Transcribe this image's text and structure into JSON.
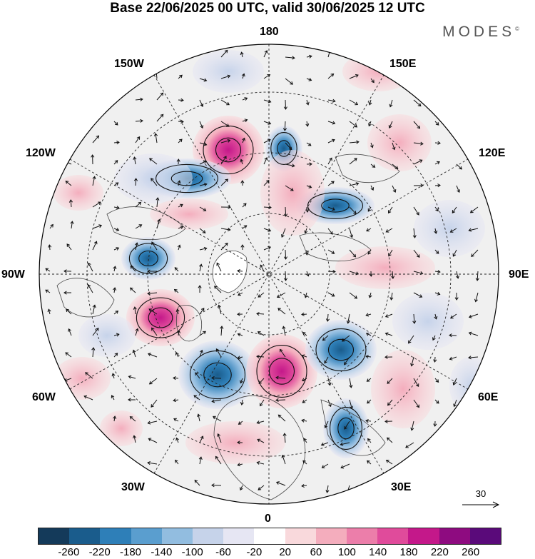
{
  "title": "Base 22/06/2025 00 UTC, valid 30/06/2025 12 UTC",
  "brand": "MODES",
  "brand_mark": "©",
  "longitude_labels": {
    "top": "180",
    "bottom": "0",
    "left": "90W",
    "right": "90E",
    "upper_left": "150W",
    "upper_right": "150E",
    "mid_upper_left": "120W",
    "mid_upper_right": "120E",
    "mid_lower_left": "60W",
    "mid_lower_right": "60E",
    "lower_left": "30W",
    "lower_right": "30E"
  },
  "reference_vector": {
    "value": "30"
  },
  "colorbar": {
    "colors": [
      "#143a5a",
      "#1a5c8c",
      "#2e7fb8",
      "#5a9ecf",
      "#92bde0",
      "#c6d3ea",
      "#e6e6f3",
      "#ffffff",
      "#f9d9dc",
      "#f4adbd",
      "#ec7eaa",
      "#e04b9b",
      "#c4188a",
      "#8e0b80",
      "#5a0a7a"
    ],
    "ticks": [
      "-260",
      "-220",
      "-180",
      "-140",
      "-100",
      "-60",
      "-20",
      "20",
      "60",
      "100",
      "140",
      "180",
      "220",
      "260"
    ]
  },
  "anomaly_colors": {
    "positive_strong": "#d3258f",
    "positive_weak": "#f5c7d0",
    "negative_strong": "#2f7cb8",
    "negative_weak": "#d8dcee",
    "land": "#ececec"
  }
}
